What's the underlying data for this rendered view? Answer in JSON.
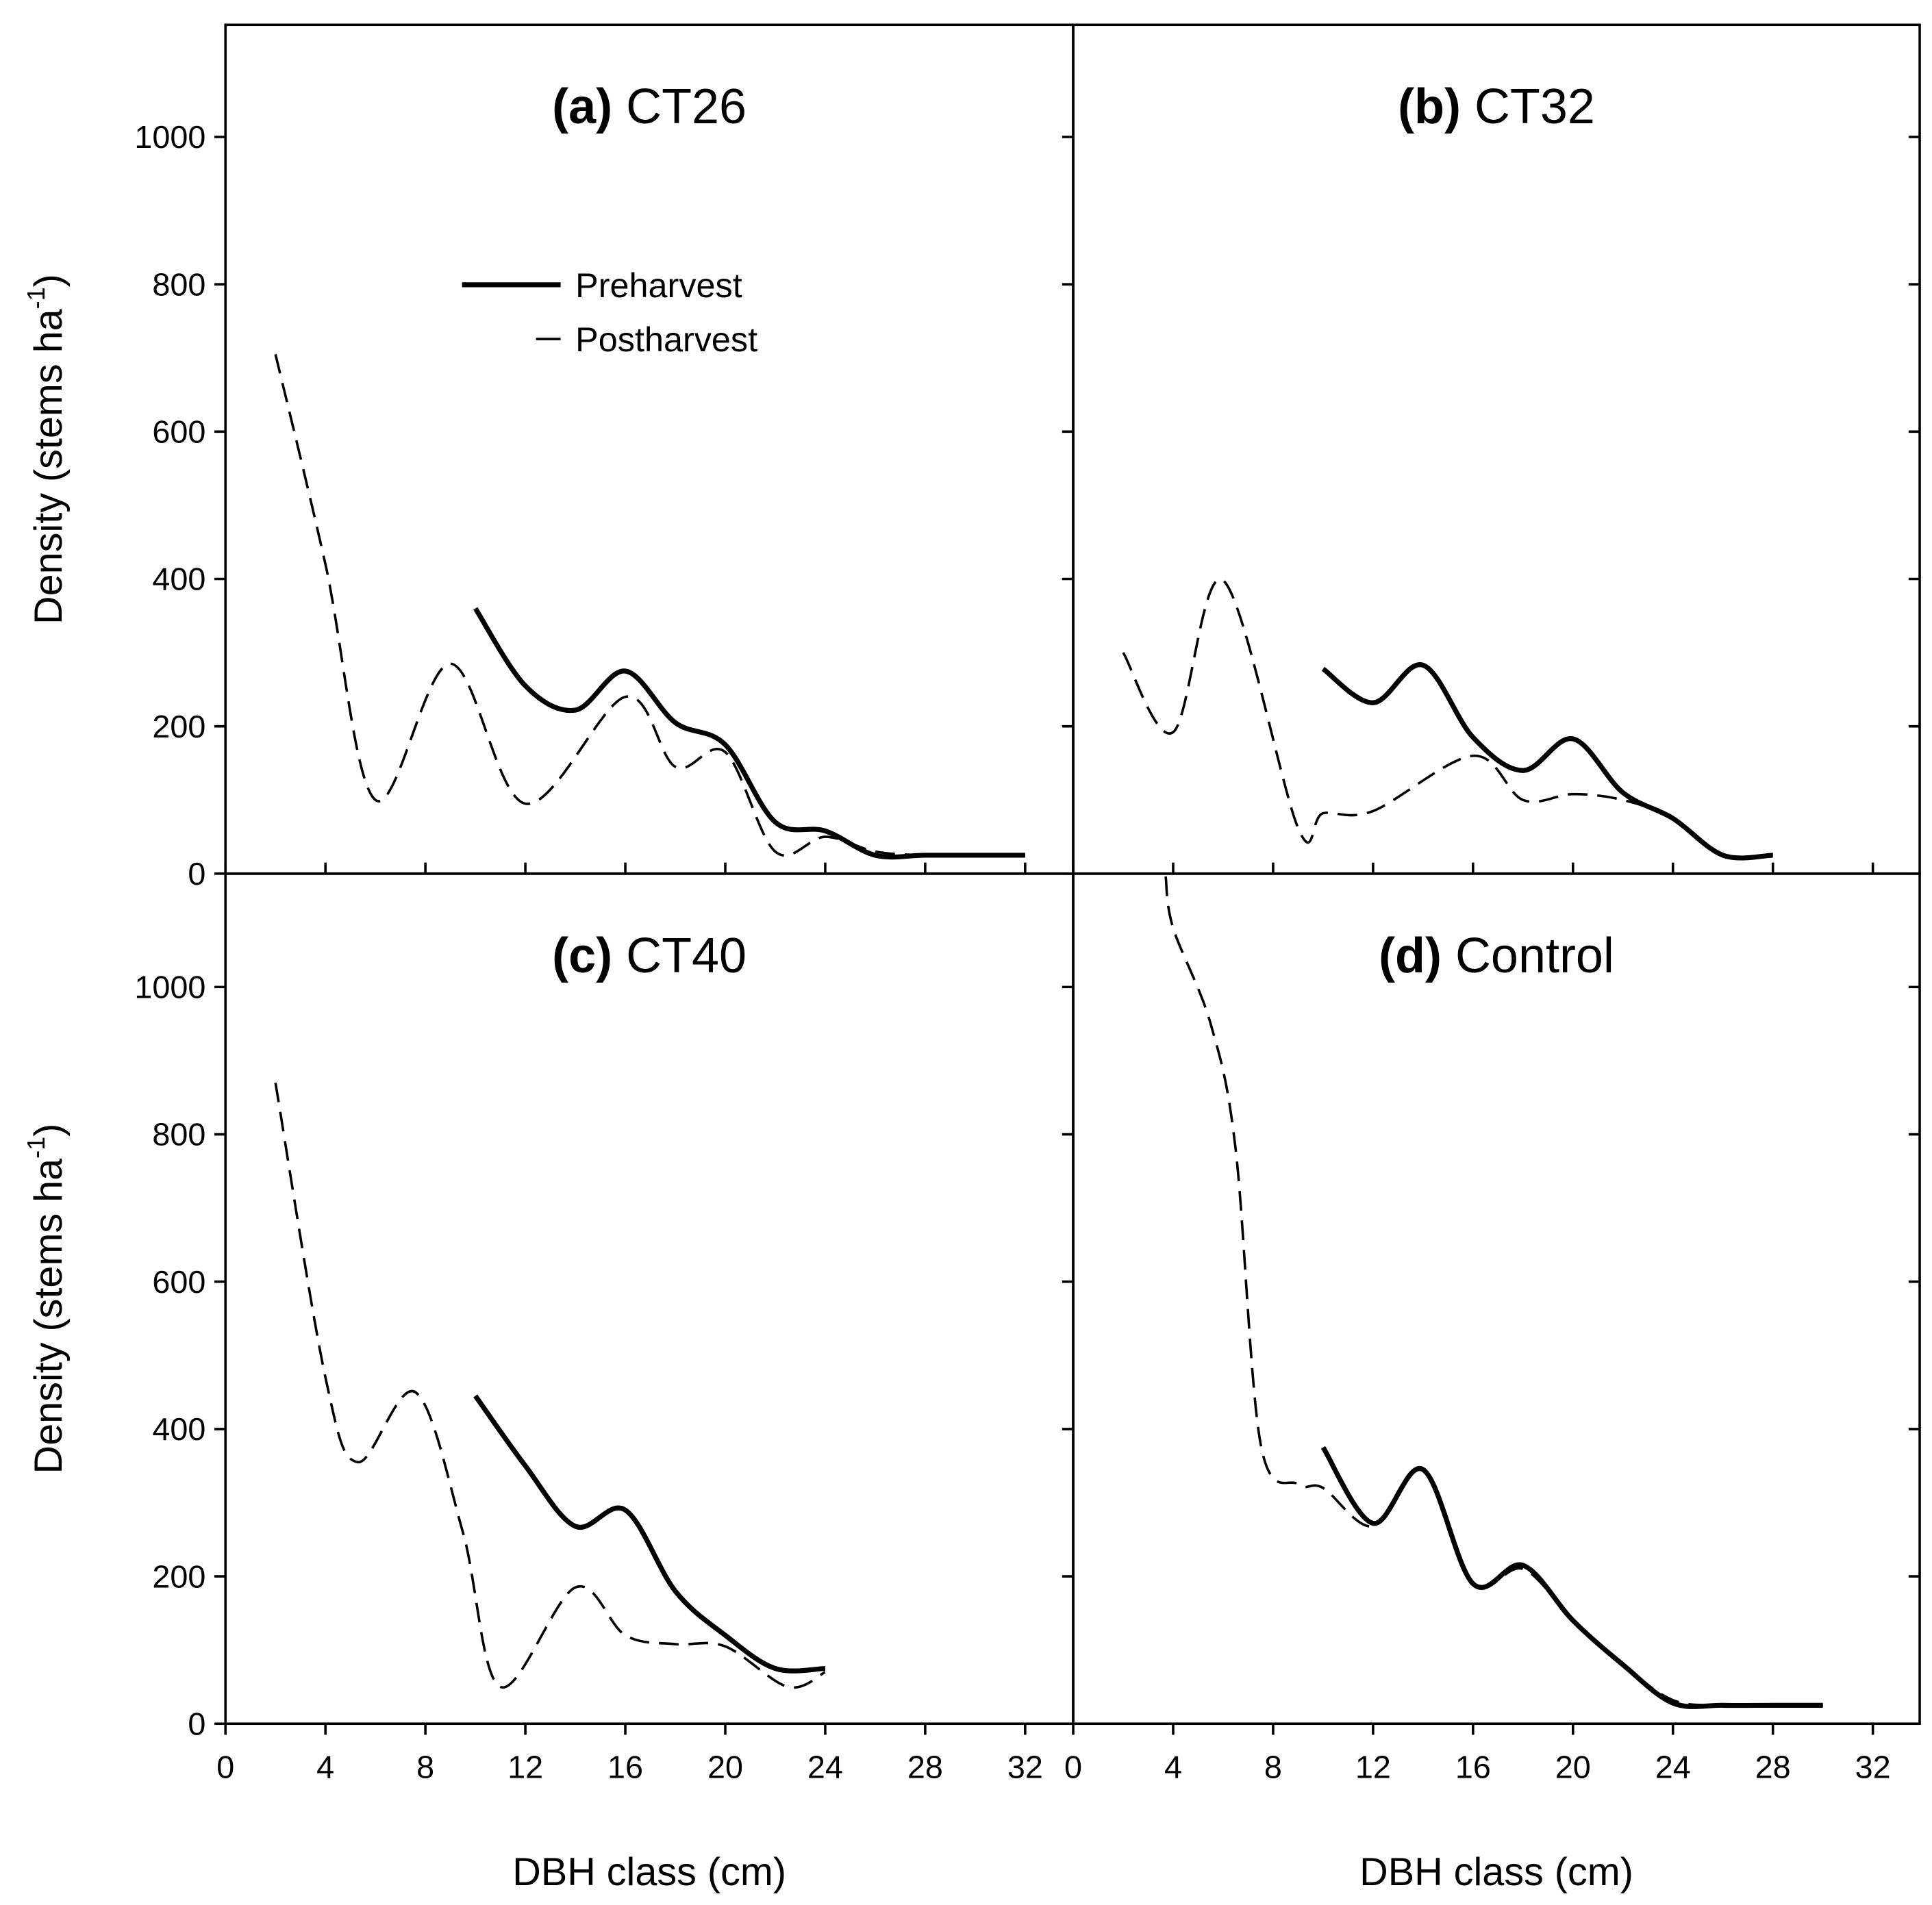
{
  "chart_data": {
    "type": "line",
    "xlabel": "DBH class (cm)",
    "ylabel": "Density (stems ha",
    "ylabel_sup": "-1",
    "ylabel_end": ")",
    "xlim": [
      0,
      34
    ],
    "ylim": [
      0,
      1150
    ],
    "xticks": [
      0,
      4,
      8,
      12,
      16,
      20,
      24,
      28,
      32
    ],
    "yticks": [
      0,
      200,
      400,
      600,
      800,
      1000
    ],
    "legend": {
      "placement": "upper-center of panel (a)",
      "entries": [
        "Preharvest",
        "Postharvest"
      ]
    },
    "panels": [
      {
        "letter": "(a)",
        "name": "CT26",
        "series": [
          {
            "name": "Preharvest",
            "style": "solid",
            "x": [
              10,
              12,
              14,
              16,
              18,
              20,
              22,
              24,
              26,
              28,
              30,
              32
            ],
            "y": [
              360,
              255,
              222,
              275,
              205,
              175,
              70,
              58,
              25,
              25,
              25,
              25
            ]
          },
          {
            "name": "Postharvest",
            "style": "dashed",
            "x": [
              2,
              4,
              6,
              9,
              12,
              16,
              18,
              20,
              22,
              24,
              26,
              28,
              30,
              32
            ],
            "y": [
              705,
              420,
              100,
              285,
              95,
              240,
              145,
              165,
              30,
              50,
              30,
              25,
              25,
              25
            ]
          }
        ]
      },
      {
        "letter": "(b)",
        "name": "CT32",
        "series": [
          {
            "name": "Preharvest",
            "style": "solid",
            "x": [
              10,
              12,
              14,
              16,
              18,
              20,
              22,
              24,
              26,
              28
            ],
            "y": [
              278,
              232,
              283,
              185,
              140,
              183,
              110,
              75,
              25,
              25
            ]
          },
          {
            "name": "Postharvest",
            "style": "dashed",
            "x": [
              2,
              4,
              6,
              9,
              10,
              12,
              16,
              18,
              20,
              22,
              24,
              26,
              28
            ],
            "y": [
              300,
              192,
              398,
              62,
              82,
              85,
              160,
              100,
              108,
              100,
              75,
              25,
              25
            ]
          }
        ]
      },
      {
        "letter": "(c)",
        "name": "CT40",
        "series": [
          {
            "name": "Preharvest",
            "style": "solid",
            "x": [
              10,
              12,
              14,
              16,
              18,
              20,
              22,
              24
            ],
            "y": [
              445,
              350,
              268,
              290,
              180,
              120,
              75,
              75
            ]
          },
          {
            "name": "Postharvest",
            "style": "dashed",
            "x": [
              2,
              4,
              5.3,
              7.6,
              9.5,
              11,
              14,
              16,
              18,
              20,
              22.5,
              24
            ],
            "y": [
              870,
              470,
              355,
              450,
              260,
              50,
              185,
              120,
              108,
              105,
              50,
              70
            ]
          }
        ]
      },
      {
        "letter": "(d)",
        "name": "Control",
        "series": [
          {
            "name": "Preharvest",
            "style": "solid",
            "x": [
              10,
              12,
              14,
              16,
              18,
              20,
              22,
              24,
              26,
              28,
              30
            ],
            "y": [
              375,
              272,
              345,
              190,
              215,
              140,
              80,
              28,
              25,
              25,
              25
            ]
          },
          {
            "name": "Postharvest",
            "style": "dashed",
            "x": [
              3.7,
              4,
              5.5,
              6.5,
              7.5,
              9,
              10,
              12,
              14,
              16,
              18,
              20,
              22,
              24,
              26,
              28,
              30
            ],
            "y": [
              1150,
              1080,
              950,
              780,
              380,
              325,
              320,
              268,
              345,
              190,
              210,
              140,
              80,
              32,
              25,
              25,
              25
            ]
          }
        ]
      }
    ]
  }
}
